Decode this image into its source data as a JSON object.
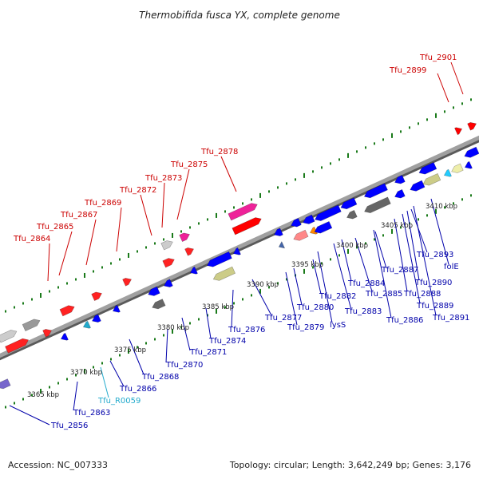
{
  "title": "Thermobifida fusca YX, complete genome",
  "footer": {
    "accession": "Accession: NC_007333",
    "summary": "Topology: circular; Length: 3,642,249 bp; Genes: 3,176"
  },
  "colors": {
    "top_strand_label": "#cc0000",
    "bottom_strand_label": "#0000aa",
    "rna_label": "#22aacc",
    "backbone": "#8a8a8a",
    "tick": "#1a7a1a"
  },
  "kbp_labels": [
    "3365 kbp",
    "3370 kbp",
    "3375 kbp",
    "3380 kbp",
    "3385 kbp",
    "3390 kbp",
    "3395 kbp",
    "3400 kbp",
    "3405 kbp",
    "3410 kbp"
  ],
  "top_labels": [
    "Tfu_2864",
    "Tfu_2865",
    "Tfu_2867",
    "Tfu_2869",
    "Tfu_2872",
    "Tfu_2873",
    "Tfu_2875",
    "Tfu_2878",
    "Tfu_2899",
    "Tfu_2901"
  ],
  "bottom_labels": [
    "Tfu_2856",
    "Tfu_2863",
    "Tfu_R0059",
    "Tfu_2866",
    "Tfu_2868",
    "Tfu_2870",
    "Tfu_2871",
    "Tfu_2874",
    "Tfu_2876",
    "Tfu_2877",
    "Tfu_2879",
    "lysS",
    "Tfu_2880",
    "Tfu_2882",
    "Tfu_2883",
    "Tfu_2884",
    "Tfu_2885",
    "Tfu_2886",
    "Tfu_2887",
    "Tfu_2888",
    "Tfu_2889",
    "Tfu_2890",
    "Tfu_2891",
    "folE",
    "Tfu_2893"
  ]
}
